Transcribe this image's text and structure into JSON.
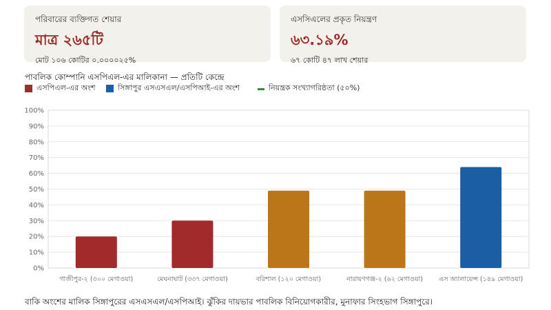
{
  "cards": [
    {
      "label": "পরিবারের ব্যক্তিগত শেয়ার",
      "value": "মাত্র ২৬৫টি",
      "sub": "মোট ১০৬ কোটির ০.০০০০২৫%"
    },
    {
      "label": "এসসিএলের প্রকৃত নিয়ন্ত্রণ",
      "value": "৬৩.১৯%",
      "sub": "৬৭ কোটি ৪৭ লাখ শেয়ার"
    }
  ],
  "chart_data": {
    "type": "bar",
    "title": "পাবলিক কোম্পানি এসপিএল-এর মালিকানা — প্রতিটি কেন্দ্রে",
    "categories": [
      "গাজীপুর-২ (৩০০ মেগাওয়া)",
      "মেঘনাঘাট (৩৩৭ মেগাওয়া)",
      "বরিশাল (১২০ মেগাওয়া)",
      "নারায়ণগঞ্জ-২ (৬২ মেগাওয়া)",
      "এস অ্যালায়েন্স (১৪৯ মেগাওয়া)"
    ],
    "values": [
      20,
      30,
      49,
      49,
      64
    ],
    "bar_colors": [
      "#a12b2b",
      "#a12b2b",
      "#bb7619",
      "#bb7619",
      "#1c5ea3"
    ],
    "ylim": [
      0,
      100
    ],
    "yticks": [
      "0%",
      "10%",
      "20%",
      "30%",
      "40%",
      "50%",
      "60%",
      "70%",
      "80%",
      "90%",
      "100%"
    ],
    "grid": true,
    "legend": [
      {
        "label": "এসপিএল-এর অংশ",
        "color": "#a12b2b",
        "kind": "box"
      },
      {
        "label": "সিঙ্গাপুর এসএসএল/এসপিআই-এর অংশ",
        "color": "#1c5ea3",
        "kind": "box"
      },
      {
        "label": "নিয়ন্ত্রক সংখ্যাগরিষ্ঠতা (৫০%)",
        "color": "#2e8b3a",
        "kind": "line"
      }
    ],
    "legend_position": "top-left"
  },
  "footer": "বাকি অংশের মালিক সিঙ্গাপুরের এসএসএল/এসপিআই। ঝুঁকির দায়ভার পাবলিক বিনিয়োগকারীর, মুনাফার সিংহভাগ সিঙ্গাপুরে।"
}
